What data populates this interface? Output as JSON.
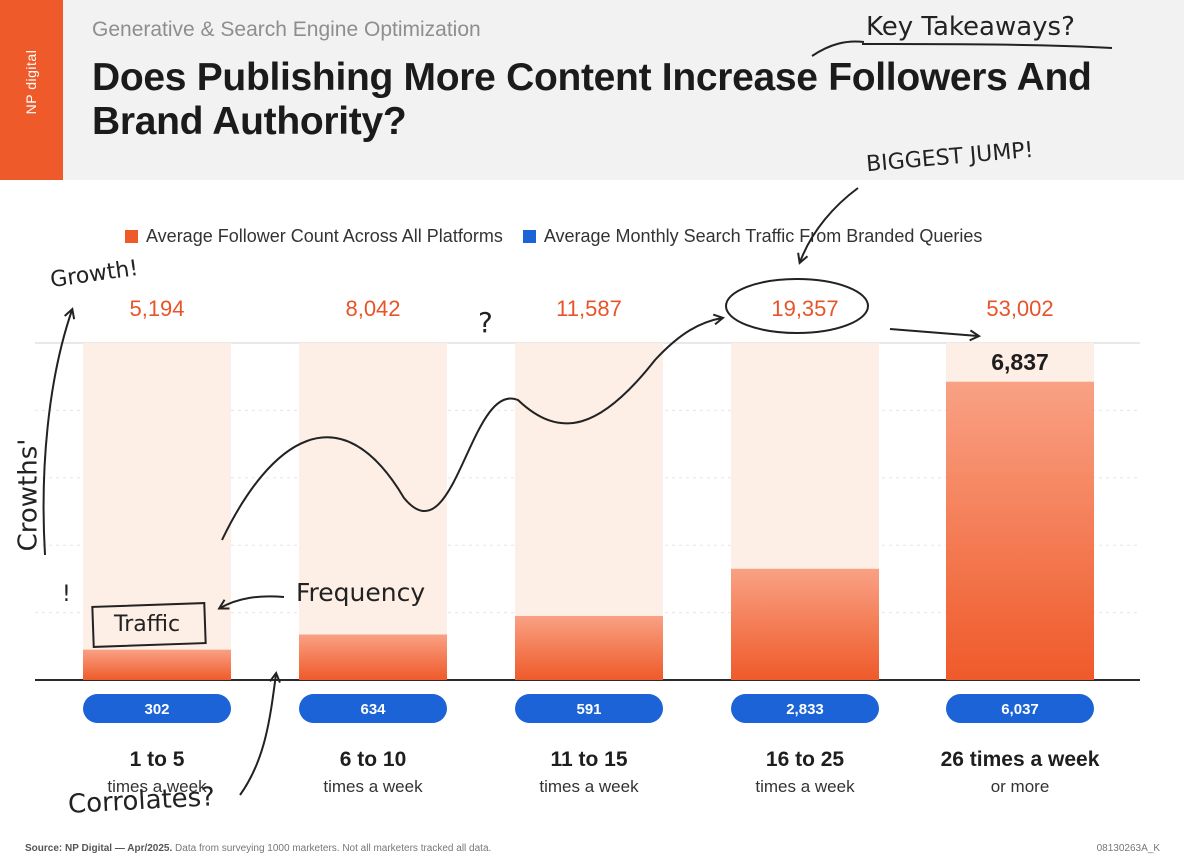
{
  "header": {
    "logo_text": "NP digital",
    "subtitle": "Generative & Search Engine Optimization",
    "title": "Does Publishing More Content Increase Followers And Brand Authority?"
  },
  "colors": {
    "brand_orange": "#ef5a2a",
    "bar_light": "#fdeee6",
    "bar_fill_top": "#f9a184",
    "bar_fill_bottom": "#ef5a2a",
    "pill_blue": "#1b63d6",
    "follower_label": "#e8542a"
  },
  "chart_data": {
    "type": "bar",
    "categories": [
      "1 to 5 times a week",
      "6 to 10 times a week",
      "11 to 15 times a week",
      "16 to 25 times a week",
      "26 times a week or more"
    ],
    "category_main": [
      "1 to 5",
      "6 to 10",
      "11 to 15",
      "16 to 25",
      "26 times a week"
    ],
    "category_sub": [
      "times a week",
      "times a week",
      "times a week",
      "times a week",
      "or more"
    ],
    "series": [
      {
        "name": "Average Follower Count Across All Platforms",
        "values": [
          5194,
          8042,
          11587,
          19357,
          53002
        ],
        "labels": [
          "5,194",
          "8,042",
          "11,587",
          "19,357",
          "53,002"
        ]
      },
      {
        "name": "Average Monthly Search Traffic From Branded Queries",
        "values": [
          302,
          634,
          591,
          2833,
          6037
        ],
        "labels": [
          "302",
          "634",
          "591",
          "2,833",
          "6,037"
        ]
      }
    ],
    "fill_levels": [
      0.09,
      0.135,
      0.19,
      0.33,
      0.885
    ],
    "extra_label": "6,837",
    "legend_position": "top"
  },
  "annotations": {
    "key_takeaways": "Key Takeaways?",
    "biggest_jump": "BIGGEST JUMP!",
    "growth": "Growth!",
    "question": "?",
    "growths_axis": "Crowths'",
    "exclaim": "!",
    "traffic": "Traffic",
    "frequency": "Frequency",
    "correlates": "Corrolates?"
  },
  "footer": {
    "source_label": "Source: NP Digital — Apr/2025.",
    "source_text": "Data from surveying 1000 marketers. Not all marketers tracked all data.",
    "code": "08130263A_K"
  }
}
